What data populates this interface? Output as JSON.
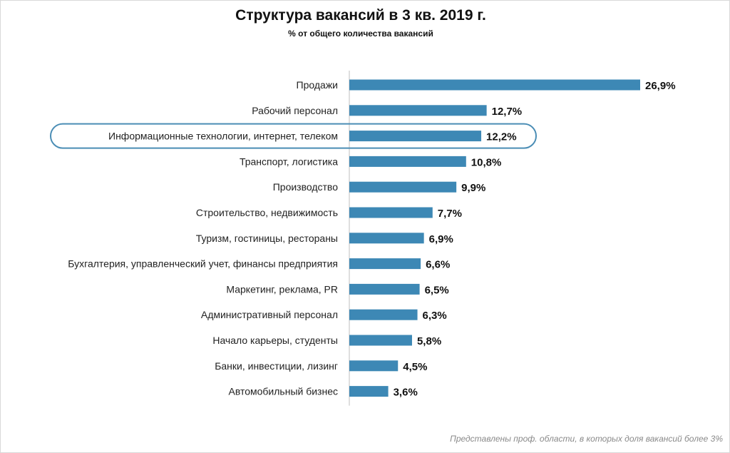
{
  "title": "Структура вакансий в 3 кв. 2019 г.",
  "subtitle": "% от общего количества вакансий",
  "footnote": "Представлены проф. области, в которых доля вакансий более 3%",
  "colors": {
    "bar": "#3d88b5",
    "highlight_outline": "#4a8db5",
    "axis": "#bfbfbf"
  },
  "chart_data": {
    "type": "bar",
    "orientation": "horizontal",
    "title": "Структура вакансий в 3 кв. 2019 г.",
    "subtitle": "% от общего количества вакансий",
    "xlabel": "",
    "ylabel": "",
    "xlim": [
      0,
      26.9
    ],
    "grid": false,
    "highlighted_category": "Информационные технологии, интернет, телеком",
    "categories": [
      "Продажи",
      "Рабочий персонал",
      "Информационные технологии, интернет, телеком",
      "Транспорт, логистика",
      "Производство",
      "Строительство, недвижимость",
      "Туризм, гостиницы, рестораны",
      "Бухгалтерия, управленческий учет, финансы предприятия",
      "Маркетинг, реклама, PR",
      "Административный персонал",
      "Начало карьеры, студенты",
      "Банки, инвестиции, лизинг",
      "Автомобильный бизнес"
    ],
    "values": [
      26.9,
      12.7,
      12.2,
      10.8,
      9.9,
      7.7,
      6.9,
      6.6,
      6.5,
      6.3,
      5.8,
      4.5,
      3.6
    ],
    "value_labels": [
      "26,9%",
      "12,7%",
      "12,2%",
      "10,8%",
      "9,9%",
      "7,7%",
      "6,9%",
      "6,6%",
      "6,5%",
      "6,3%",
      "5,8%",
      "4,5%",
      "3,6%"
    ]
  }
}
